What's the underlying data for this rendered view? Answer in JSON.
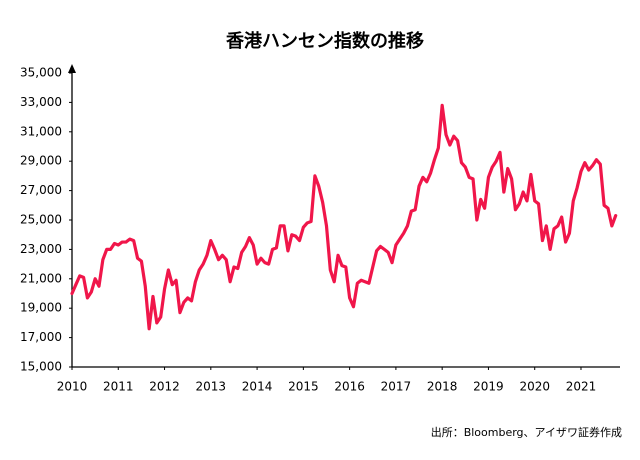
{
  "chart_data": {
    "type": "line",
    "title": "香港ハンセン指数の推移",
    "source": "出所：Bloomberg、アイザワ証券作成",
    "xlim": [
      2010,
      2021.8
    ],
    "xticks": [
      2010,
      2011,
      2012,
      2013,
      2014,
      2015,
      2016,
      2017,
      2018,
      2019,
      2020,
      2021
    ],
    "ylim": [
      15000,
      35000
    ],
    "yticks": [
      {
        "value": 15000,
        "label": "15,000"
      },
      {
        "value": 17000,
        "label": "17,000"
      },
      {
        "value": 19000,
        "label": "19,000"
      },
      {
        "value": 21000,
        "label": "21,000"
      },
      {
        "value": 23000,
        "label": "23,000"
      },
      {
        "value": 25000,
        "label": "25,000"
      },
      {
        "value": 27000,
        "label": "27,000"
      },
      {
        "value": 29000,
        "label": "29,000"
      },
      {
        "value": 31000,
        "label": "31,000"
      },
      {
        "value": 33000,
        "label": "33,000"
      },
      {
        "value": 35000,
        "label": "35,000"
      }
    ],
    "grid": false,
    "color": "#f0164a",
    "x": [
      2010,
      2010.083,
      2010.167,
      2010.25,
      2010.333,
      2010.417,
      2010.5,
      2010.583,
      2010.667,
      2010.75,
      2010.833,
      2010.917,
      2011,
      2011.083,
      2011.167,
      2011.25,
      2011.333,
      2011.417,
      2011.5,
      2011.583,
      2011.667,
      2011.75,
      2011.833,
      2011.917,
      2012,
      2012.083,
      2012.167,
      2012.25,
      2012.333,
      2012.417,
      2012.5,
      2012.583,
      2012.667,
      2012.75,
      2012.833,
      2012.917,
      2013,
      2013.083,
      2013.167,
      2013.25,
      2013.333,
      2013.417,
      2013.5,
      2013.583,
      2013.667,
      2013.75,
      2013.833,
      2013.917,
      2014,
      2014.083,
      2014.167,
      2014.25,
      2014.333,
      2014.417,
      2014.5,
      2014.583,
      2014.667,
      2014.75,
      2014.833,
      2014.917,
      2015,
      2015.083,
      2015.167,
      2015.25,
      2015.333,
      2015.417,
      2015.5,
      2015.583,
      2015.667,
      2015.75,
      2015.833,
      2015.917,
      2016,
      2016.083,
      2016.167,
      2016.25,
      2016.333,
      2016.417,
      2016.5,
      2016.583,
      2016.667,
      2016.75,
      2016.833,
      2016.917,
      2017,
      2017.083,
      2017.167,
      2017.25,
      2017.333,
      2017.417,
      2017.5,
      2017.583,
      2017.667,
      2017.75,
      2017.833,
      2017.917,
      2018,
      2018.083,
      2018.167,
      2018.25,
      2018.333,
      2018.417,
      2018.5,
      2018.583,
      2018.667,
      2018.75,
      2018.833,
      2018.917,
      2019,
      2019.083,
      2019.167,
      2019.25,
      2019.333,
      2019.417,
      2019.5,
      2019.583,
      2019.667,
      2019.75,
      2019.833,
      2019.917,
      2020,
      2020.083,
      2020.167,
      2020.25,
      2020.333,
      2020.417,
      2020.5,
      2020.583,
      2020.667,
      2020.75,
      2020.833,
      2020.917,
      2021,
      2021.083,
      2021.167,
      2021.25,
      2021.333,
      2021.417,
      2021.5,
      2021.583,
      2021.667,
      2021.75
    ],
    "values": [
      20000,
      20600,
      21200,
      21100,
      19700,
      20100,
      21000,
      20500,
      22300,
      23000,
      23000,
      23400,
      23300,
      23500,
      23500,
      23700,
      23600,
      22400,
      22200,
      20500,
      17600,
      19800,
      18000,
      18400,
      20300,
      21600,
      20600,
      20900,
      18700,
      19400,
      19700,
      19500,
      20800,
      21600,
      22000,
      22600,
      23600,
      23000,
      22300,
      22600,
      22300,
      20800,
      21800,
      21700,
      22800,
      23200,
      23800,
      23300,
      22000,
      22400,
      22100,
      22000,
      23000,
      23100,
      24600,
      24600,
      22900,
      24000,
      23900,
      23600,
      24500,
      24800,
      24900,
      28000,
      27300,
      26200,
      24600,
      21600,
      20800,
      22600,
      21900,
      21800,
      19700,
      19100,
      20700,
      20900,
      20800,
      20700,
      21800,
      22900,
      23200,
      23000,
      22800,
      22100,
      23300,
      23700,
      24100,
      24600,
      25600,
      25700,
      27300,
      27900,
      27600,
      28200,
      29100,
      29900,
      32800,
      30800,
      30100,
      30700,
      30400,
      28900,
      28600,
      27900,
      27800,
      25000,
      26400,
      25800,
      27900,
      28600,
      29000,
      29600,
      26900,
      28500,
      27800,
      25700,
      26100,
      26900,
      26300,
      28100,
      26300,
      26100,
      23600,
      24600,
      23000,
      24400,
      24600,
      25200,
      23500,
      24100,
      26300,
      27200,
      28300,
      28900,
      28400,
      28700,
      29100,
      28800,
      26000,
      25800,
      24600,
      25300
    ]
  }
}
